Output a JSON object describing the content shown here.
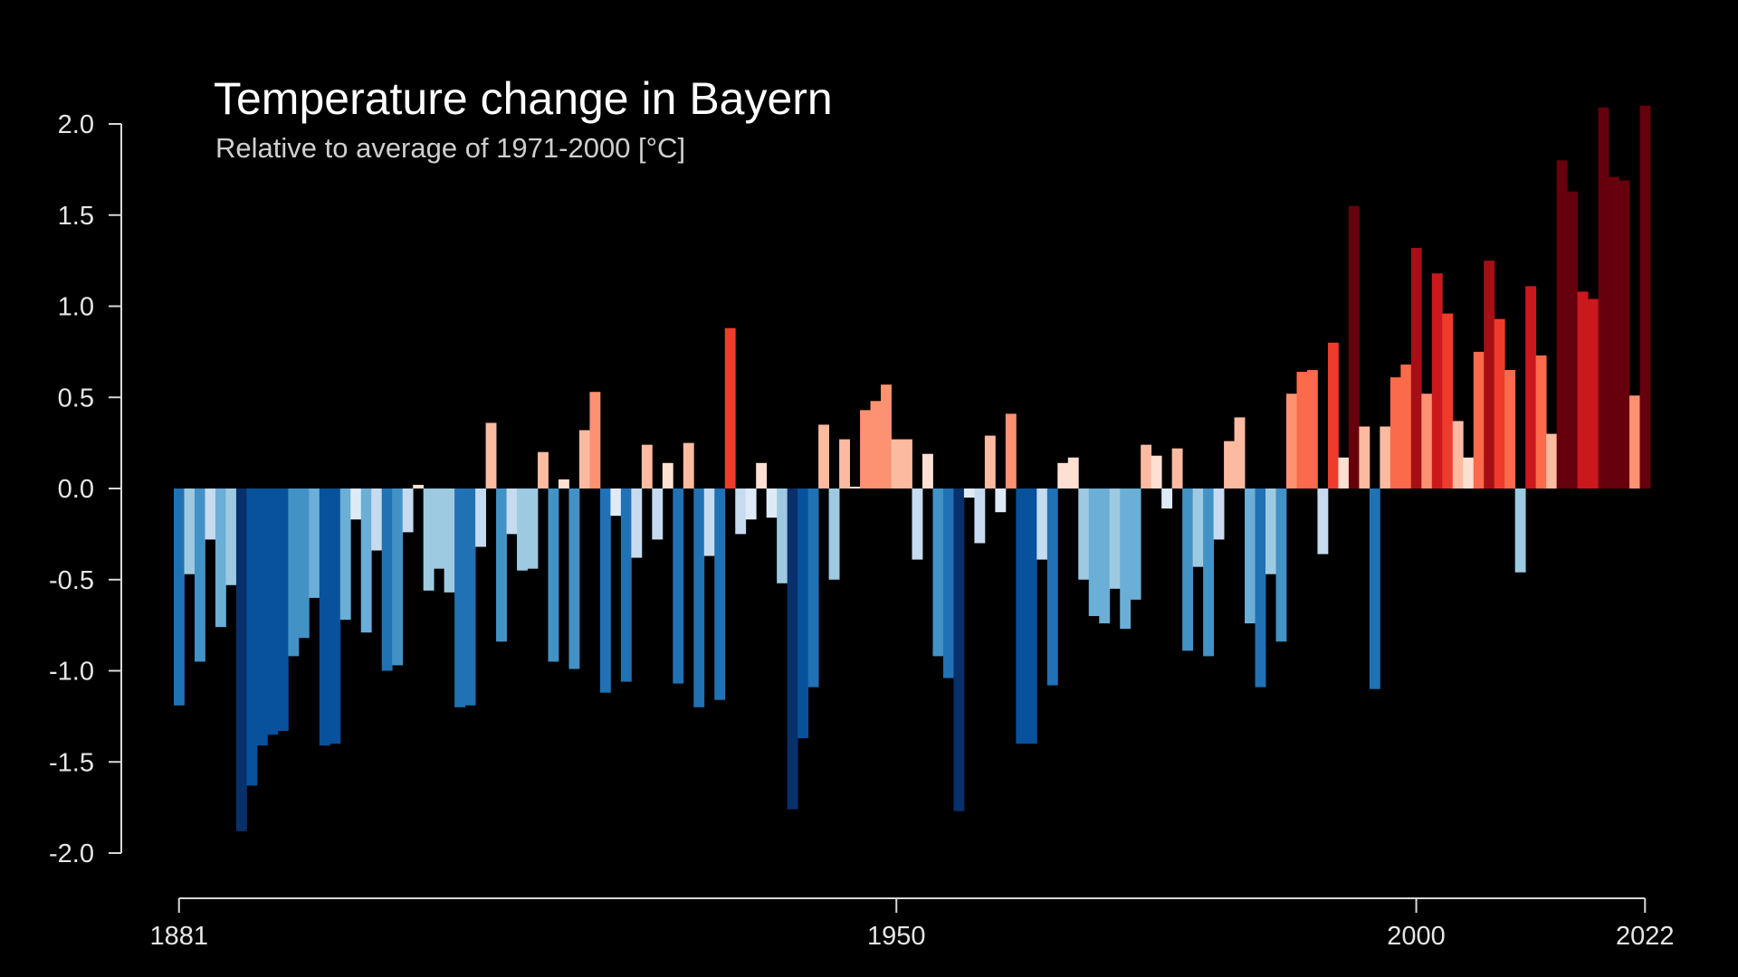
{
  "chart_data": {
    "type": "bar",
    "title": "Temperature change in Bayern",
    "subtitle": "Relative to average of 1971-2000  [°C]",
    "x_start": 1881,
    "x_end": 2022,
    "x_ticks": [
      "1881",
      "1950",
      "2000",
      "2022"
    ],
    "y_ticks": [
      "2.0",
      "1.5",
      "1.0",
      "0.5",
      "0.0",
      "-0.5",
      "-1.0",
      "-1.5",
      "-2.0"
    ],
    "ylim": [
      -2.0,
      2.0
    ],
    "grid": false,
    "background": "#000000",
    "axis_color": "#d9d9d9",
    "color_scale": {
      "cold": [
        "#08306b",
        "#08519c",
        "#2171b5",
        "#4292c6",
        "#6baed6",
        "#9ecae1",
        "#c6dbef",
        "#deebf7"
      ],
      "warm": [
        "#fee0d2",
        "#fcbba1",
        "#fc9272",
        "#fb6a4a",
        "#ef3b2c",
        "#cb181d",
        "#a50f15",
        "#67000d"
      ]
    },
    "years": [
      1881,
      1882,
      1883,
      1884,
      1885,
      1886,
      1887,
      1888,
      1889,
      1890,
      1891,
      1892,
      1893,
      1894,
      1895,
      1896,
      1897,
      1898,
      1899,
      1900,
      1901,
      1902,
      1903,
      1904,
      1905,
      1906,
      1907,
      1908,
      1909,
      1910,
      1911,
      1912,
      1913,
      1914,
      1915,
      1916,
      1917,
      1918,
      1919,
      1920,
      1921,
      1922,
      1923,
      1924,
      1925,
      1926,
      1927,
      1928,
      1929,
      1930,
      1931,
      1932,
      1933,
      1934,
      1935,
      1936,
      1937,
      1938,
      1939,
      1940,
      1941,
      1942,
      1943,
      1944,
      1945,
      1946,
      1947,
      1948,
      1949,
      1950,
      1951,
      1952,
      1953,
      1954,
      1955,
      1956,
      1957,
      1958,
      1959,
      1960,
      1961,
      1962,
      1963,
      1964,
      1965,
      1966,
      1967,
      1968,
      1969,
      1970,
      1971,
      1972,
      1973,
      1974,
      1975,
      1976,
      1977,
      1978,
      1979,
      1980,
      1981,
      1982,
      1983,
      1984,
      1985,
      1986,
      1987,
      1988,
      1989,
      1990,
      1991,
      1992,
      1993,
      1994,
      1995,
      1996,
      1997,
      1998,
      1999,
      2000,
      2001,
      2002,
      2003,
      2004,
      2005,
      2006,
      2007,
      2008,
      2009,
      2010,
      2011,
      2012,
      2013,
      2014,
      2015,
      2016,
      2017,
      2018,
      2019,
      2020,
      2021,
      2022
    ],
    "values": [
      -1.19,
      -0.47,
      -0.95,
      -0.28,
      -0.76,
      -0.53,
      -1.88,
      -1.63,
      -1.41,
      -1.35,
      -1.33,
      -0.92,
      -0.82,
      -0.6,
      -1.41,
      -1.4,
      -0.72,
      -0.17,
      -0.79,
      -0.34,
      -1.0,
      -0.97,
      -0.24,
      0.02,
      -0.56,
      -0.44,
      -0.57,
      -1.2,
      -1.19,
      -0.32,
      0.36,
      -0.84,
      -0.25,
      -0.45,
      -0.44,
      0.2,
      -0.95,
      0.05,
      -0.99,
      0.32,
      0.53,
      -1.12,
      -0.15,
      -1.06,
      -0.38,
      0.24,
      -0.28,
      0.14,
      -1.07,
      0.25,
      -1.2,
      -0.37,
      -1.16,
      0.88,
      -0.25,
      -0.17,
      0.14,
      -0.16,
      -0.52,
      -1.76,
      -1.37,
      -1.09,
      0.35,
      -0.5,
      0.27,
      0.01,
      0.43,
      0.48,
      0.57,
      0.27,
      0.27,
      -0.39,
      0.19,
      -0.92,
      -1.04,
      -1.77,
      -0.05,
      -0.3,
      0.29,
      -0.13,
      0.41,
      -1.4,
      -1.4,
      -0.39,
      -1.08,
      0.14,
      0.17,
      -0.5,
      -0.7,
      -0.74,
      -0.55,
      -0.77,
      -0.61,
      0.24,
      0.18,
      -0.11,
      0.22,
      -0.89,
      -0.43,
      -0.92,
      -0.28,
      0.26,
      0.39,
      -0.74,
      -1.09,
      -0.47,
      -0.84,
      0.52,
      0.64,
      0.65,
      -0.36,
      0.8,
      0.17,
      1.55,
      0.34,
      -1.1,
      0.34,
      0.61,
      0.68,
      1.32,
      0.52,
      1.18,
      0.96,
      0.37,
      0.17,
      0.75,
      1.25,
      0.93,
      0.65,
      -0.46,
      1.11,
      0.73,
      0.3,
      1.8,
      1.63,
      1.08,
      1.04,
      2.09,
      1.71,
      1.69,
      0.51,
      2.1
    ]
  }
}
